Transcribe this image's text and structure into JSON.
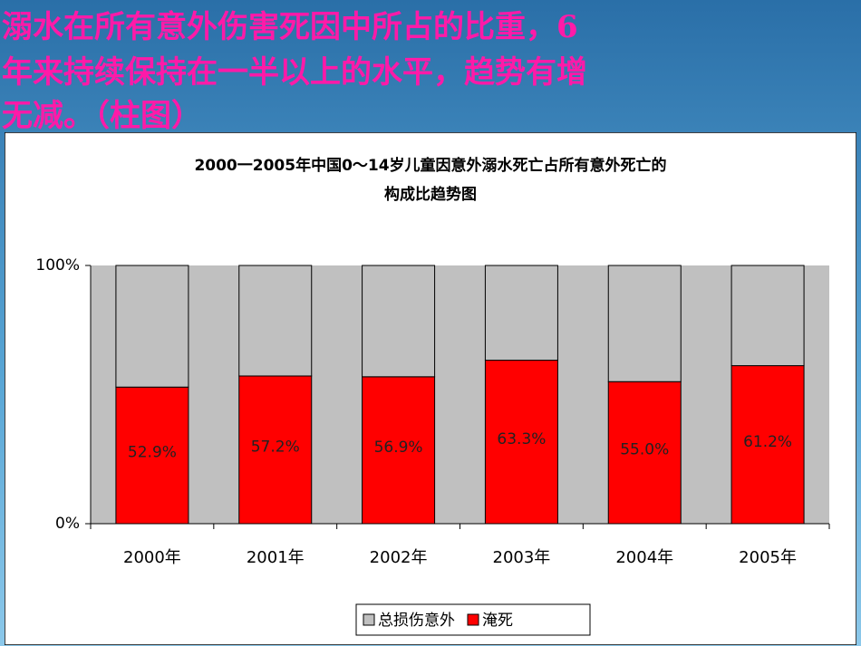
{
  "header": {
    "lines": [
      "溺水在所有意外伤害死因中所占的比重，6",
      "年来持续保持在一半以上的水平，趋势有增",
      "无减。（柱图）"
    ]
  },
  "chart_data": {
    "type": "stacked_bar",
    "title_lines": [
      "2000一2005年中国0～14岁儿童因意外溺水死亡占所有意外死亡的",
      "构成比趋势图"
    ],
    "categories": [
      "2000年",
      "2001年",
      "2002年",
      "2003年",
      "2004年",
      "2005年"
    ],
    "series": [
      {
        "name": "总损伤意外",
        "color": "#c0c0c0",
        "values": [
          47.1,
          42.8,
          43.1,
          36.7,
          45.0,
          38.8
        ]
      },
      {
        "name": "淹死",
        "color": "#ff0000",
        "values": [
          52.9,
          57.2,
          56.9,
          63.3,
          55.0,
          61.2
        ],
        "value_labels": [
          "52.9%",
          "57.2%",
          "56.9%",
          "63.3%",
          "55.0%",
          "61.2%"
        ]
      }
    ],
    "ylim": [
      0,
      100
    ],
    "yticks": [
      {
        "value": 0,
        "label": "0%"
      },
      {
        "value": 100,
        "label": "100%"
      }
    ],
    "plot_background": "#c0c0c0"
  }
}
